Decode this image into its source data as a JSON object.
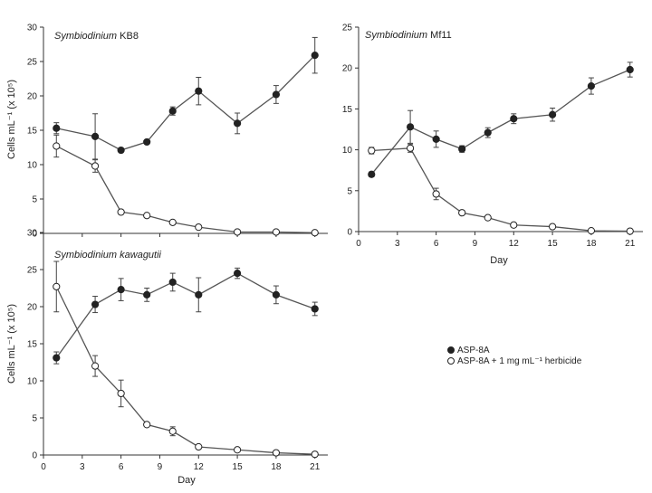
{
  "chart_data": [
    {
      "type": "line",
      "title_species": "Symbiodinium",
      "title_strain": "KB8",
      "ylabel": "Cells mL⁻¹ (x 10⁵)",
      "xlabel": "",
      "ylim": [
        0,
        30
      ],
      "yticks": [
        0,
        5,
        10,
        15,
        20,
        25,
        30
      ],
      "xlim": [
        0,
        22
      ],
      "xticks": [],
      "series": [
        {
          "name": "ASP-8A",
          "marker": "filled",
          "x": [
            1,
            4,
            6,
            8,
            10,
            12,
            15,
            18,
            21
          ],
          "y": [
            15.3,
            14.1,
            12.1,
            13.3,
            17.8,
            20.7,
            16.0,
            20.2,
            25.9
          ],
          "err": [
            0.8,
            3.3,
            0.2,
            0.2,
            0.6,
            2.0,
            1.5,
            1.3,
            2.6
          ]
        },
        {
          "name": "ASP-8A + 1 mg mL⁻¹ herbicide",
          "marker": "open",
          "x": [
            1,
            4,
            6,
            8,
            10,
            12,
            15,
            18,
            21
          ],
          "y": [
            12.7,
            9.8,
            3.1,
            2.6,
            1.6,
            0.9,
            0.2,
            0.2,
            0.1
          ],
          "err": [
            1.6,
            0.9,
            0.2,
            0.2,
            0.2,
            0.2,
            0.1,
            0.1,
            0.05
          ]
        }
      ]
    },
    {
      "type": "line",
      "title_species": "Symbiodinium",
      "title_strain": "Mf11",
      "ylabel": "",
      "xlabel": "Day",
      "ylim": [
        0,
        25
      ],
      "yticks": [
        0,
        5,
        10,
        15,
        20,
        25
      ],
      "xlim": [
        0,
        22
      ],
      "xticks": [
        0,
        3,
        6,
        9,
        12,
        15,
        18,
        21
      ],
      "series": [
        {
          "name": "ASP-8A",
          "marker": "filled",
          "x": [
            1,
            4,
            6,
            8,
            10,
            12,
            15,
            18,
            21
          ],
          "y": [
            7.0,
            12.8,
            11.3,
            10.1,
            12.1,
            13.8,
            14.3,
            17.8,
            19.8
          ],
          "err": [
            0.3,
            2.0,
            1.0,
            0.4,
            0.6,
            0.6,
            0.8,
            1.0,
            0.9
          ]
        },
        {
          "name": "ASP-8A + 1 mg mL⁻¹ herbicide",
          "marker": "open",
          "x": [
            1,
            4,
            6,
            8,
            10,
            12,
            15,
            18,
            21
          ],
          "y": [
            9.9,
            10.2,
            4.6,
            2.3,
            1.7,
            0.8,
            0.6,
            0.1,
            0.05
          ],
          "err": [
            0.4,
            0.5,
            0.7,
            0.2,
            0.2,
            0.1,
            0.1,
            0.1,
            0.05
          ]
        }
      ]
    },
    {
      "type": "line",
      "title_species": "Symbiodinium kawagutii",
      "title_strain": "",
      "ylabel": "Cells mL⁻¹ (x 10⁵)",
      "xlabel": "Day",
      "ylim": [
        0,
        30
      ],
      "yticks": [
        0,
        5,
        10,
        15,
        20,
        25,
        30
      ],
      "xlim": [
        0,
        22
      ],
      "xticks": [
        0,
        3,
        6,
        9,
        12,
        15,
        18,
        21
      ],
      "series": [
        {
          "name": "ASP-8A",
          "marker": "filled",
          "x": [
            1,
            4,
            6,
            8,
            10,
            12,
            15,
            18,
            21
          ],
          "y": [
            13.1,
            20.3,
            22.3,
            21.6,
            23.3,
            21.6,
            24.5,
            21.6,
            19.7
          ],
          "err": [
            0.8,
            1.1,
            1.5,
            0.9,
            1.2,
            2.3,
            0.7,
            1.2,
            0.9
          ]
        },
        {
          "name": "ASP-8A + 1 mg mL⁻¹ herbicide",
          "marker": "open",
          "x": [
            1,
            4,
            6,
            8,
            10,
            12,
            15,
            18,
            21
          ],
          "y": [
            22.7,
            12.0,
            8.3,
            4.1,
            3.2,
            1.1,
            0.7,
            0.3,
            0.1
          ],
          "err": [
            3.4,
            1.4,
            1.8,
            0.2,
            0.6,
            0.2,
            0.1,
            0.1,
            0.05
          ]
        }
      ]
    }
  ],
  "legend": {
    "items": [
      {
        "label": "ASP-8A",
        "marker": "filled"
      },
      {
        "label": "ASP-8A + 1 mg mL⁻¹ herbicide",
        "marker": "open"
      }
    ]
  }
}
